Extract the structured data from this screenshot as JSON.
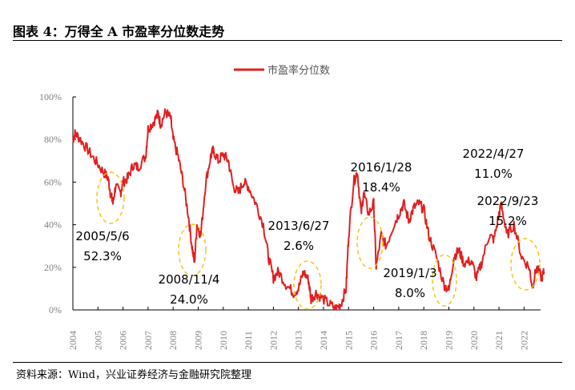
{
  "title": "图表 4：万得全 A 市盈率分位数走势",
  "source": "资料来源：Wind，兴业证券经济与金融研究院整理",
  "colors": {
    "line": "#e02020",
    "ellipse": "#f5c518",
    "axis": "#000000",
    "tick_text": "#808080"
  },
  "chart_data": {
    "type": "line",
    "legend": [
      "市盈率分位数"
    ],
    "legend_position": "top-center",
    "ylim": [
      0,
      100
    ],
    "yticks": [
      "0%",
      "20%",
      "40%",
      "60%",
      "80%",
      "100%"
    ],
    "xlim": [
      2004,
      2022.9
    ],
    "xticks": [
      "2004",
      "2005",
      "2006",
      "2007",
      "2008",
      "2009",
      "2010",
      "2011",
      "2012",
      "2013",
      "2014",
      "2015",
      "2016",
      "2017",
      "2018",
      "2019",
      "2020",
      "2021",
      "2022"
    ],
    "series": [
      {
        "name": "市盈率分位数",
        "x": [
          2004.0,
          2004.1,
          2004.3,
          2004.6,
          2004.9,
          2005.2,
          2005.4,
          2005.5,
          2005.6,
          2005.7,
          2005.9,
          2006.0,
          2006.2,
          2006.4,
          2006.6,
          2006.9,
          2007.0,
          2007.2,
          2007.4,
          2007.5,
          2007.7,
          2007.9,
          2008.0,
          2008.2,
          2008.4,
          2008.6,
          2008.75,
          2008.85,
          2008.95,
          2009.1,
          2009.3,
          2009.5,
          2009.6,
          2009.8,
          2010.0,
          2010.2,
          2010.4,
          2010.6,
          2010.8,
          2011.0,
          2011.3,
          2011.6,
          2011.8,
          2012.0,
          2012.2,
          2012.5,
          2012.8,
          2013.0,
          2013.2,
          2013.4,
          2013.5,
          2013.7,
          2013.9,
          2014.2,
          2014.5,
          2014.7,
          2014.9,
          2015.0,
          2015.2,
          2015.35,
          2015.5,
          2015.6,
          2015.8,
          2016.0,
          2016.1,
          2016.3,
          2016.5,
          2016.8,
          2017.0,
          2017.2,
          2017.4,
          2017.6,
          2017.8,
          2018.0,
          2018.2,
          2018.5,
          2018.8,
          2019.0,
          2019.2,
          2019.4,
          2019.6,
          2019.9,
          2020.1,
          2020.3,
          2020.6,
          2020.8,
          2021.0,
          2021.1,
          2021.3,
          2021.6,
          2021.9,
          2022.2,
          2022.33,
          2022.5,
          2022.7,
          2022.8
        ],
        "values": [
          80,
          83,
          80,
          75,
          70,
          65,
          62,
          55,
          50,
          58,
          55,
          60,
          62,
          68,
          67,
          72,
          85,
          88,
          92,
          87,
          93,
          90,
          80,
          72,
          60,
          45,
          30,
          22,
          40,
          35,
          60,
          72,
          75,
          70,
          73,
          70,
          58,
          55,
          60,
          58,
          50,
          40,
          25,
          15,
          18,
          12,
          8,
          10,
          18,
          14,
          5,
          8,
          6,
          3,
          0.5,
          3,
          10,
          35,
          60,
          65,
          45,
          55,
          45,
          50,
          20,
          35,
          30,
          40,
          45,
          50,
          42,
          48,
          50,
          47,
          35,
          25,
          12,
          9,
          25,
          28,
          22,
          23,
          15,
          22,
          35,
          33,
          45,
          50,
          35,
          40,
          25,
          20,
          11,
          20,
          15,
          18
        ]
      }
    ],
    "annotations": [
      {
        "lines": [
          "2005/5/6",
          "52.3%"
        ],
        "x": 2005.35,
        "y": 52
      },
      {
        "lines": [
          "2008/11/4",
          "24.0%"
        ],
        "x": 2008.85,
        "y": 29
      },
      {
        "lines": [
          "2013/6/27",
          "2.6%"
        ],
        "x": 2013.5,
        "y": 10
      },
      {
        "lines": [
          "2016/1/28",
          "18.4%"
        ],
        "x": 2016.1,
        "y": 30
      },
      {
        "lines": [
          "2019/1/3",
          "8.0%"
        ],
        "x": 2018.95,
        "y": 14
      },
      {
        "lines": [
          "2022/4/27",
          "11.0%"
        ],
        "x": 2021.45,
        "y": 55
      },
      {
        "lines": [
          "2022/9/23",
          "15.2%"
        ],
        "x": 2022.6,
        "y": 21
      }
    ]
  }
}
